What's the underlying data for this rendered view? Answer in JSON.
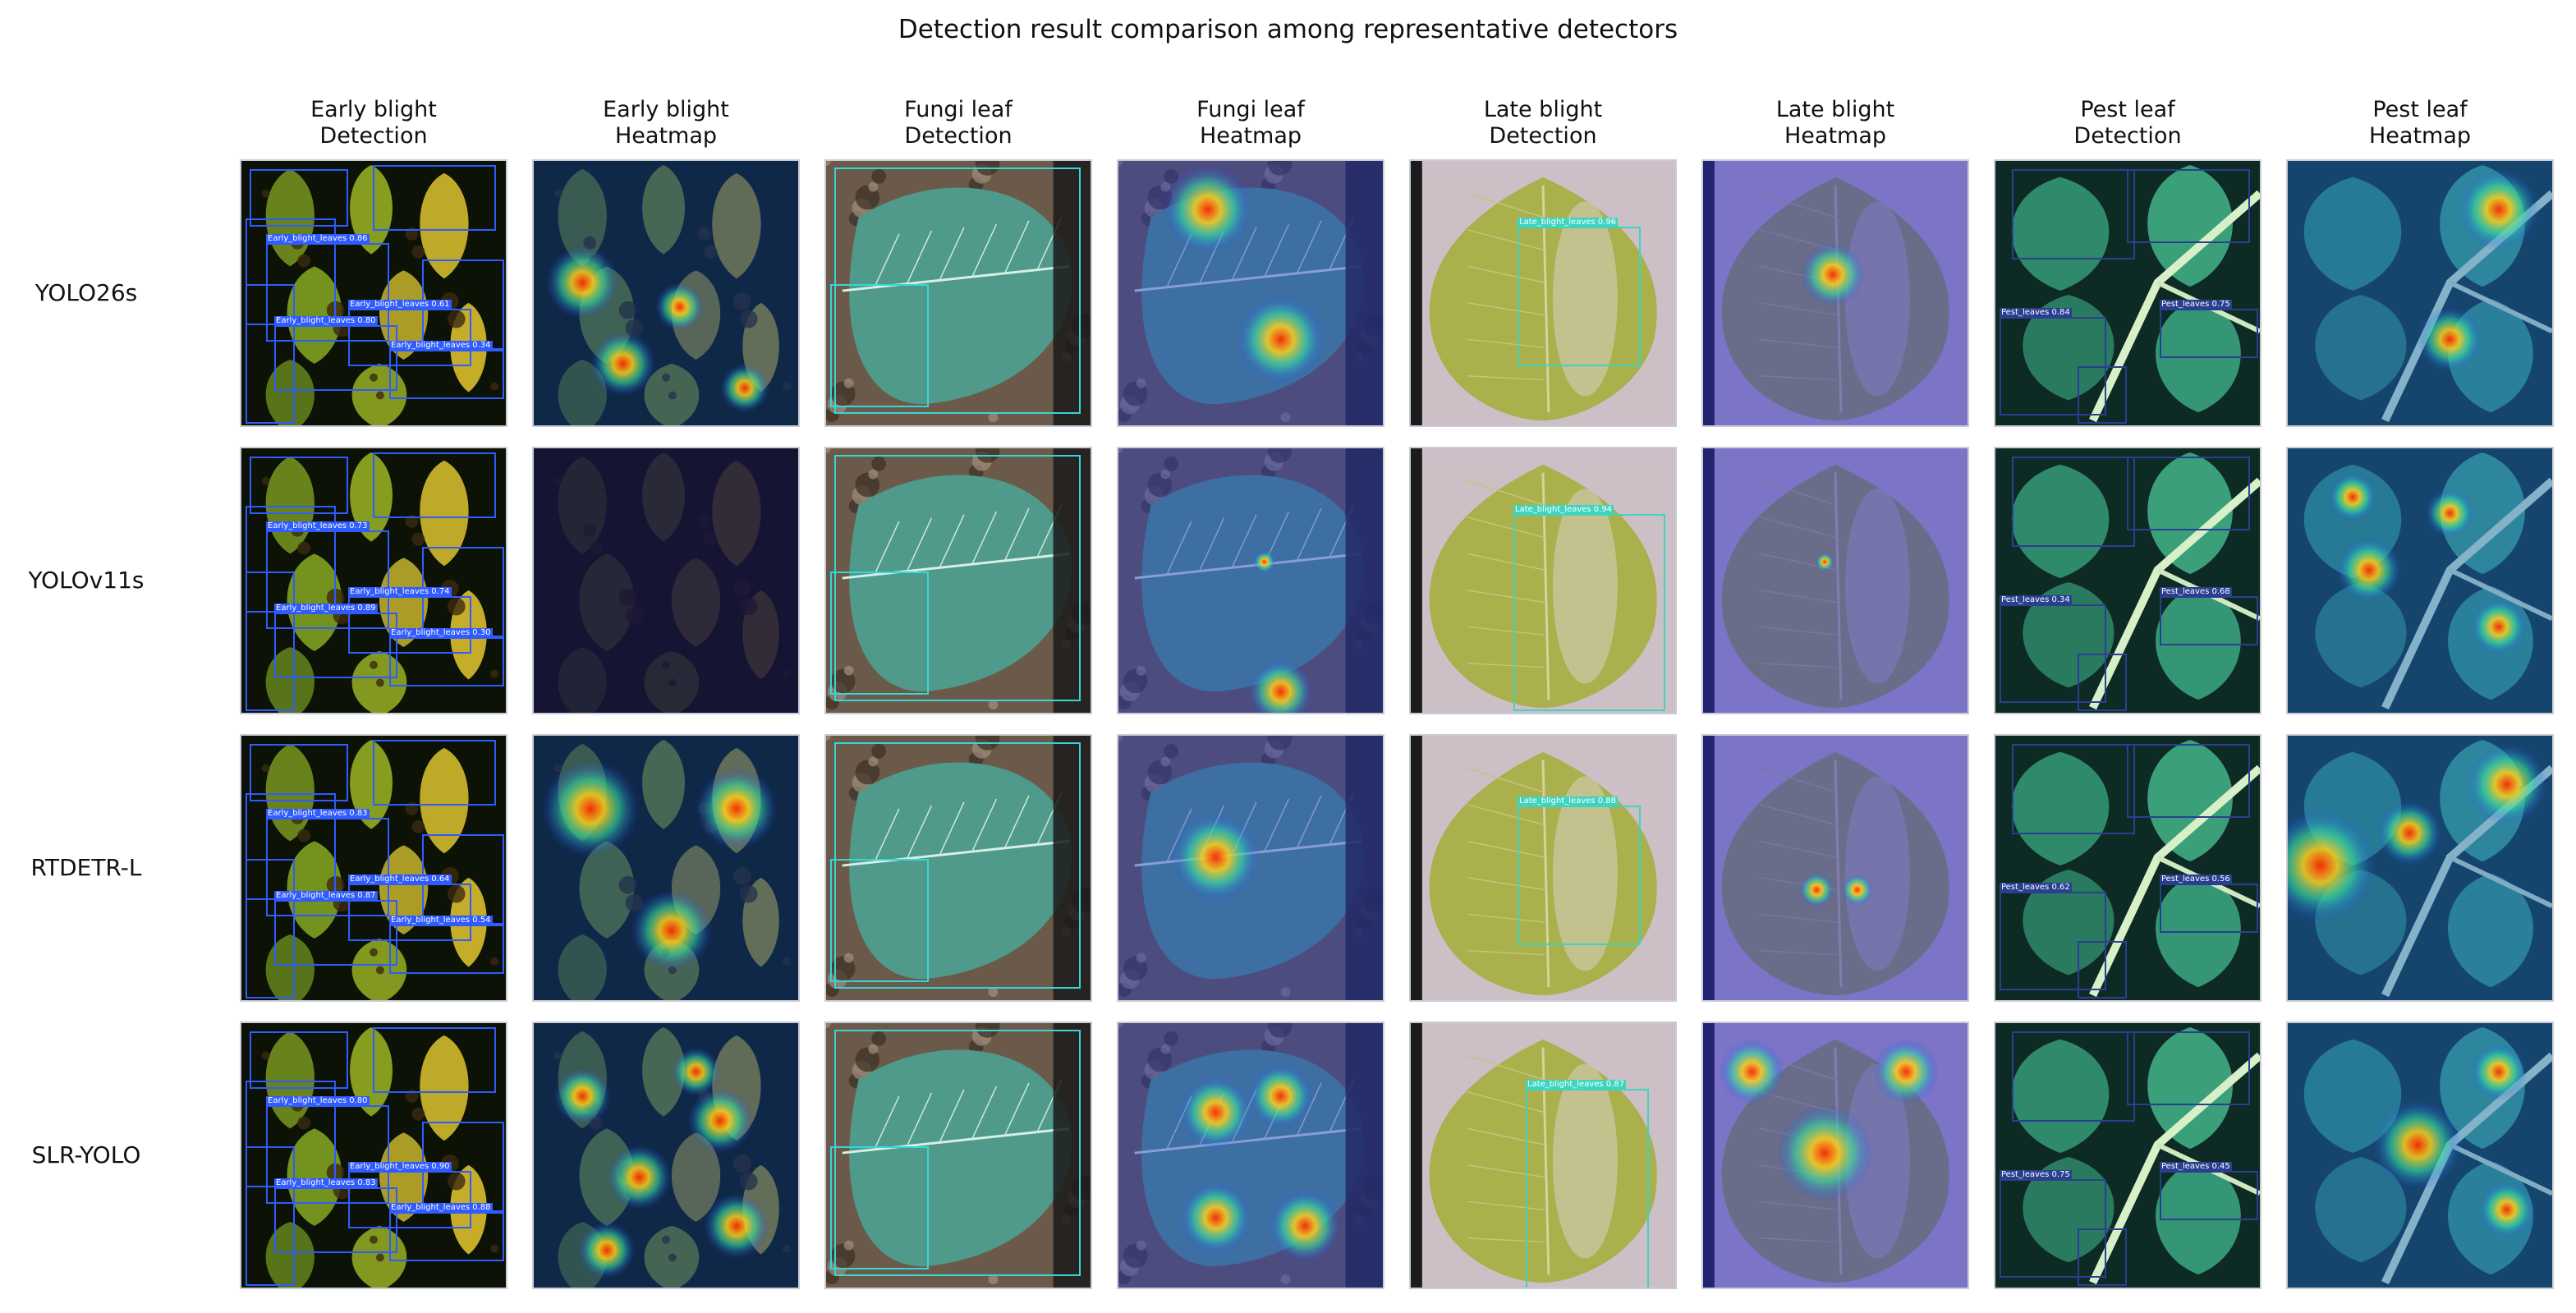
{
  "title": "Detection result comparison among representative detectors",
  "columns": [
    {
      "line1": "Early blight",
      "line2": "Detection"
    },
    {
      "line1": "Early blight",
      "line2": "Heatmap"
    },
    {
      "line1": "Fungi leaf",
      "line2": "Detection"
    },
    {
      "line1": "Fungi leaf",
      "line2": "Heatmap"
    },
    {
      "line1": "Late blight",
      "line2": "Detection"
    },
    {
      "line1": "Late blight",
      "line2": "Heatmap"
    },
    {
      "line1": "Pest leaf",
      "line2": "Detection"
    },
    {
      "line1": "Pest leaf",
      "line2": "Heatmap"
    }
  ],
  "rows": [
    "YOLO26s",
    "YOLOv11s",
    "RTDETR-L",
    "SLR-YOLO"
  ],
  "colors": {
    "early_box": "#2f5bff",
    "fungi_box": "#36d6d6",
    "late_box": "#3fd4c0",
    "pest_box": "#2a3f8f"
  },
  "detections": [
    {
      "early": [
        "Early_blight_leaves 0.86",
        "Early_blight_leaves 0.61",
        "Early_blight_leaves 0.80",
        "Early_blight_leaves 0.34"
      ],
      "late": "Late_blight_leaves 0.96",
      "pest": [
        "Pest_leaves 0.84",
        "Pest_leaves 0.75"
      ]
    },
    {
      "early": [
        "Early_blight_leaves 0.73",
        "Early_blight_leaves 0.74",
        "Early_blight_leaves 0.89",
        "Early_blight_leaves 0.30"
      ],
      "late": "Late_blight_leaves 0.94",
      "pest": [
        "Pest_leaves 0.34",
        "Pest_leaves 0.68"
      ]
    },
    {
      "early": [
        "Early_blight_leaves 0.83",
        "Early_blight_leaves 0.64",
        "Early_blight_leaves 0.87",
        "Early_blight_leaves 0.54"
      ],
      "late": "Late_blight_leaves 0.88",
      "pest": [
        "Pest_leaves 0.62",
        "Pest_leaves 0.56"
      ]
    },
    {
      "early": [
        "Early_blight_leaves 0.80",
        "Early_blight_leaves 0.90",
        "Early_blight_leaves 0.83",
        "Early_blight_leaves 0.88"
      ],
      "late": "Late_blight_leaves 0.87",
      "pest": [
        "Pest_leaves 0.75",
        "Pest_leaves 0.45"
      ]
    }
  ]
}
